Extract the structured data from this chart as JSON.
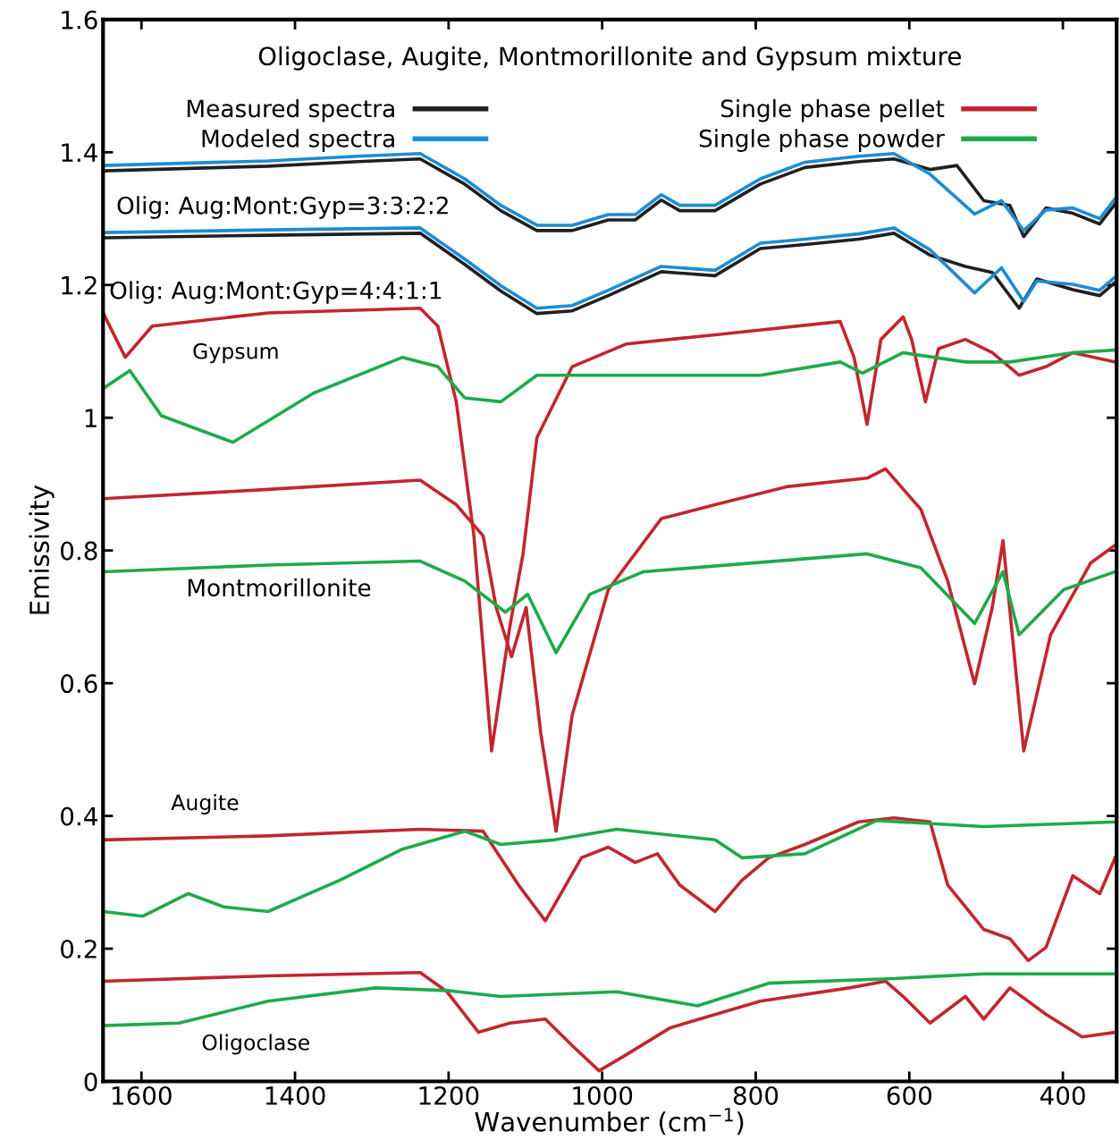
{
  "chart_data": {
    "type": "line",
    "title": "Oligoclase, Augite, Montmorillonite and Gypsum mixture",
    "xlabel": "Wavenumber (cm$^{−1}$)",
    "ylabel": "Emissivity",
    "xlim": [
      1650,
      330
    ],
    "xticks": [
      1600,
      1400,
      1200,
      1000,
      800,
      600,
      400
    ],
    "ylim": [
      0,
      1.6
    ],
    "yticks": [
      0,
      0.2,
      0.4,
      0.6,
      0.8,
      1,
      1.2,
      1.4,
      1.6
    ],
    "grid": false,
    "legend": "top",
    "marker": "none",
    "line_style": "solid",
    "series": [
      {
        "name": "Measured spectra",
        "color": "#231f20",
        "x": [
          1650,
          1435,
          1318,
          1237,
          1179,
          1132,
          1085,
          1039,
          992,
          957,
          923,
          899,
          853,
          794,
          736,
          666,
          620,
          573,
          538,
          503,
          469,
          451,
          422,
          387,
          352,
          332
        ],
        "values": [
          1.372,
          1.379,
          1.386,
          1.39,
          1.352,
          1.312,
          1.282,
          1.282,
          1.298,
          1.298,
          1.328,
          1.312,
          1.312,
          1.352,
          1.377,
          1.386,
          1.39,
          1.374,
          1.38,
          1.327,
          1.32,
          1.273,
          1.316,
          1.308,
          1.292,
          1.322
        ]
      },
      {
        "name": "Modeled spectra",
        "color": "#1b8dd4",
        "x": [
          1650,
          1435,
          1318,
          1237,
          1179,
          1132,
          1085,
          1039,
          992,
          957,
          923,
          899,
          853,
          794,
          736,
          666,
          620,
          573,
          515,
          480,
          451,
          422,
          387,
          352,
          332
        ],
        "values": [
          1.38,
          1.387,
          1.394,
          1.398,
          1.36,
          1.32,
          1.29,
          1.29,
          1.306,
          1.306,
          1.336,
          1.32,
          1.32,
          1.36,
          1.385,
          1.394,
          1.398,
          1.367,
          1.307,
          1.327,
          1.282,
          1.313,
          1.316,
          1.3,
          1.33
        ]
      },
      {
        "color": "#231f20",
        "x": [
          1650,
          1435,
          1237,
          1179,
          1132,
          1085,
          1039,
          992,
          923,
          853,
          794,
          736,
          666,
          620,
          573,
          527,
          492,
          457,
          434,
          387,
          352,
          332
        ],
        "values": [
          1.271,
          1.275,
          1.278,
          1.231,
          1.191,
          1.157,
          1.161,
          1.184,
          1.22,
          1.214,
          1.255,
          1.261,
          1.269,
          1.278,
          1.245,
          1.228,
          1.219,
          1.165,
          1.209,
          1.193,
          1.184,
          1.204
        ]
      },
      {
        "color": "#1b8dd4",
        "x": [
          1650,
          1435,
          1237,
          1179,
          1132,
          1085,
          1039,
          992,
          923,
          853,
          794,
          736,
          666,
          620,
          573,
          515,
          480,
          451,
          434,
          387,
          352,
          332
        ],
        "values": [
          1.279,
          1.283,
          1.286,
          1.239,
          1.199,
          1.165,
          1.169,
          1.192,
          1.228,
          1.222,
          1.263,
          1.269,
          1.277,
          1.286,
          1.253,
          1.188,
          1.226,
          1.175,
          1.206,
          1.201,
          1.192,
          1.212
        ]
      },
      {
        "name": "Single phase pellet",
        "color": "#c1272d",
        "x": [
          1650,
          1621,
          1586,
          1435,
          1237,
          1214,
          1190,
          1167,
          1144,
          1120,
          1103,
          1085,
          1039,
          969,
          853,
          690,
          672,
          655,
          637,
          608,
          597,
          579,
          562,
          527,
          492,
          457,
          422,
          387,
          332
        ],
        "values": [
          1.158,
          1.091,
          1.138,
          1.158,
          1.165,
          1.138,
          1.024,
          0.822,
          0.498,
          0.687,
          0.795,
          0.97,
          1.077,
          1.111,
          1.125,
          1.145,
          1.091,
          0.99,
          1.118,
          1.152,
          1.118,
          1.024,
          1.104,
          1.118,
          1.098,
          1.064,
          1.077,
          1.098,
          1.084
        ]
      },
      {
        "name": "Single phase powder",
        "color": "#1faa4a",
        "x": [
          1650,
          1615,
          1574,
          1481,
          1376,
          1260,
          1214,
          1179,
          1132,
          1085,
          969,
          794,
          690,
          661,
          608,
          527,
          469,
          387,
          332
        ],
        "values": [
          1.044,
          1.071,
          1.003,
          0.963,
          1.037,
          1.091,
          1.077,
          1.03,
          1.024,
          1.064,
          1.064,
          1.064,
          1.084,
          1.067,
          1.098,
          1.084,
          1.084,
          1.098,
          1.102
        ]
      },
      {
        "color": "#c1272d",
        "x": [
          1650,
          1435,
          1237,
          1190,
          1155,
          1138,
          1118,
          1099,
          1080,
          1060,
          1039,
          992,
          923,
          853,
          760,
          655,
          631,
          585,
          550,
          515,
          492,
          478,
          451,
          416,
          364,
          332
        ],
        "values": [
          0.878,
          0.892,
          0.906,
          0.869,
          0.822,
          0.714,
          0.64,
          0.714,
          0.525,
          0.377,
          0.552,
          0.741,
          0.848,
          0.869,
          0.896,
          0.909,
          0.923,
          0.862,
          0.754,
          0.599,
          0.714,
          0.815,
          0.498,
          0.673,
          0.781,
          0.808
        ]
      },
      {
        "color": "#1faa4a",
        "x": [
          1650,
          1435,
          1237,
          1179,
          1126,
          1097,
          1060,
          1016,
          946,
          655,
          585,
          515,
          478,
          457,
          399,
          332
        ],
        "values": [
          0.768,
          0.778,
          0.784,
          0.754,
          0.707,
          0.734,
          0.646,
          0.734,
          0.768,
          0.795,
          0.774,
          0.69,
          0.768,
          0.673,
          0.741,
          0.768
        ]
      },
      {
        "color": "#c1272d",
        "x": [
          1650,
          1435,
          1237,
          1155,
          1109,
          1074,
          1027,
          992,
          957,
          928,
          899,
          853,
          818,
          783,
          736,
          666,
          620,
          573,
          550,
          503,
          469,
          445,
          422,
          387,
          352,
          332
        ],
        "values": [
          0.364,
          0.37,
          0.38,
          0.377,
          0.296,
          0.242,
          0.337,
          0.353,
          0.33,
          0.343,
          0.296,
          0.256,
          0.303,
          0.337,
          0.357,
          0.391,
          0.397,
          0.391,
          0.296,
          0.229,
          0.215,
          0.182,
          0.202,
          0.31,
          0.283,
          0.337
        ]
      },
      {
        "color": "#1faa4a",
        "x": [
          1650,
          1598,
          1539,
          1493,
          1435,
          1342,
          1260,
          1179,
          1132,
          1062,
          981,
          853,
          818,
          736,
          643,
          503,
          332
        ],
        "values": [
          0.256,
          0.249,
          0.283,
          0.263,
          0.256,
          0.303,
          0.35,
          0.377,
          0.357,
          0.364,
          0.38,
          0.364,
          0.337,
          0.343,
          0.393,
          0.384,
          0.391
        ]
      },
      {
        "color": "#c1272d",
        "x": [
          1650,
          1435,
          1237,
          1202,
          1161,
          1120,
          1074,
          1039,
          1004,
          969,
          911,
          794,
          678,
          631,
          608,
          573,
          527,
          503,
          469,
          422,
          375,
          332
        ],
        "values": [
          0.151,
          0.159,
          0.164,
          0.135,
          0.074,
          0.088,
          0.094,
          0.054,
          0.016,
          0.04,
          0.081,
          0.121,
          0.141,
          0.151,
          0.128,
          0.088,
          0.128,
          0.094,
          0.141,
          0.101,
          0.067,
          0.074
        ]
      },
      {
        "color": "#1faa4a",
        "x": [
          1650,
          1551,
          1435,
          1295,
          1202,
          1132,
          981,
          876,
          783,
          620,
          503,
          332
        ],
        "values": [
          0.084,
          0.088,
          0.121,
          0.141,
          0.137,
          0.128,
          0.135,
          0.114,
          0.148,
          0.155,
          0.162,
          0.162
        ]
      }
    ],
    "annotations": [
      "Olig: Aug:Mont:Gyp=3:3:2:2",
      "Olig: Aug:Mont:Gyp=4:4:1:1",
      "Gypsum",
      "Montmorillonite",
      "Augite",
      "Oligoclase"
    ]
  }
}
